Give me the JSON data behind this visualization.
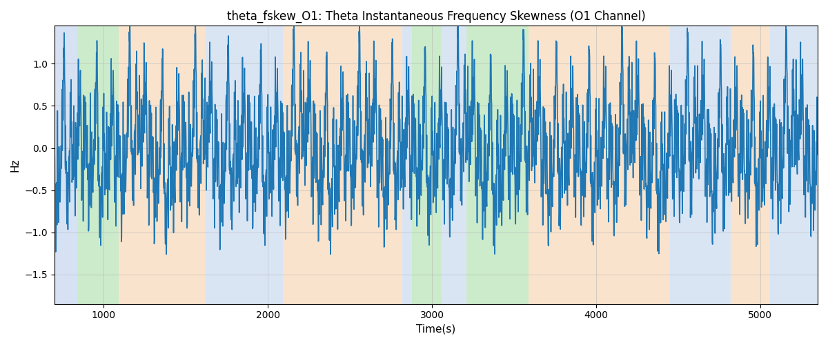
{
  "title": "theta_fskew_O1: Theta Instantaneous Frequency Skewness (O1 Channel)",
  "xlabel": "Time(s)",
  "ylabel": "Hz",
  "xlim": [
    700,
    5350
  ],
  "ylim": [
    -1.85,
    1.45
  ],
  "line_color": "#1f77b4",
  "line_width": 1.2,
  "bg_bands": [
    {
      "xmin": 700,
      "xmax": 840,
      "color": "#aec7e8",
      "alpha": 0.5
    },
    {
      "xmin": 840,
      "xmax": 1090,
      "color": "#98d898",
      "alpha": 0.5
    },
    {
      "xmin": 1090,
      "xmax": 1620,
      "color": "#f5c99a",
      "alpha": 0.5
    },
    {
      "xmin": 1620,
      "xmax": 2090,
      "color": "#aec7e8",
      "alpha": 0.45
    },
    {
      "xmin": 2090,
      "xmax": 2820,
      "color": "#f5c99a",
      "alpha": 0.5
    },
    {
      "xmin": 2820,
      "xmax": 2880,
      "color": "#aec7e8",
      "alpha": 0.45
    },
    {
      "xmin": 2880,
      "xmax": 3060,
      "color": "#98d898",
      "alpha": 0.5
    },
    {
      "xmin": 3060,
      "xmax": 3210,
      "color": "#aec7e8",
      "alpha": 0.45
    },
    {
      "xmin": 3210,
      "xmax": 3590,
      "color": "#98d898",
      "alpha": 0.5
    },
    {
      "xmin": 3590,
      "xmax": 4450,
      "color": "#f5c99a",
      "alpha": 0.5
    },
    {
      "xmin": 4450,
      "xmax": 4820,
      "color": "#aec7e8",
      "alpha": 0.45
    },
    {
      "xmin": 4820,
      "xmax": 5060,
      "color": "#f5c99a",
      "alpha": 0.5
    },
    {
      "xmin": 5060,
      "xmax": 5350,
      "color": "#aec7e8",
      "alpha": 0.45
    }
  ],
  "grid_color": "#b0b0b0",
  "grid_alpha": 0.5,
  "grid_linewidth": 0.7,
  "yticks": [
    -1.5,
    -1.0,
    -0.5,
    0.0,
    0.5,
    1.0
  ],
  "xticks": [
    1000,
    2000,
    3000,
    4000,
    5000
  ]
}
